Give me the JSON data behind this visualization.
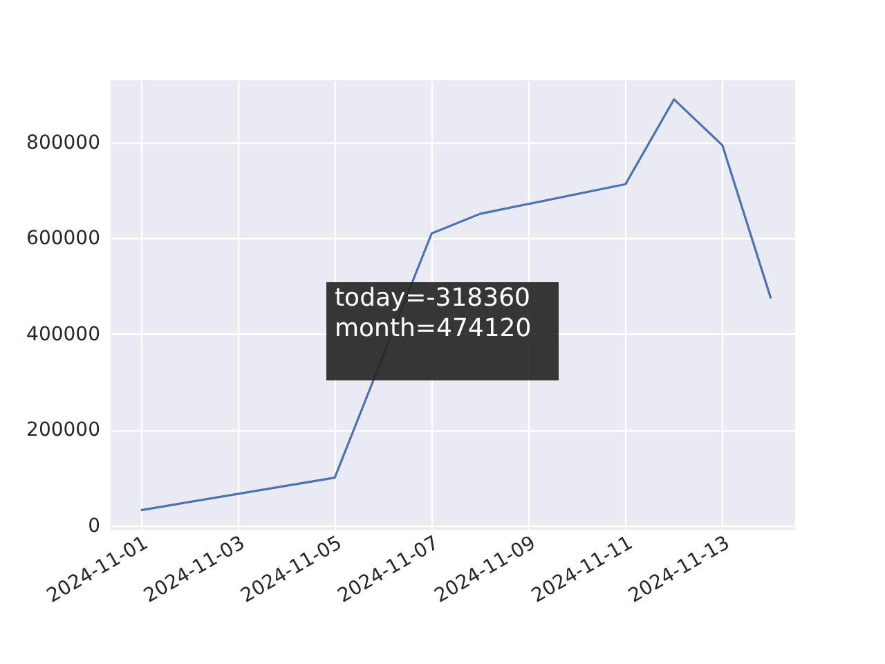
{
  "chart_data": {
    "type": "line",
    "x": [
      "2024-11-01",
      "2024-11-05",
      "2024-11-07",
      "2024-11-08",
      "2024-11-11",
      "2024-11-12",
      "2024-11-13",
      "2024-11-14"
    ],
    "series": [
      {
        "color": "#4c72b0",
        "values": [
          32000,
          100000,
          610000,
          651000,
          713000,
          890000,
          794000,
          474120
        ]
      }
    ],
    "xlim": [
      "2024-10-31T09:00",
      "2024-11-14T12:00"
    ],
    "xticks": [
      "2024-11-01",
      "2024-11-03",
      "2024-11-05",
      "2024-11-07",
      "2024-11-09",
      "2024-11-11",
      "2024-11-13"
    ],
    "ylim": [
      -9000,
      930000
    ],
    "yticks": [
      0,
      200000,
      400000,
      600000,
      800000
    ],
    "annotations": [
      "today=-318360\nmonth=474120"
    ],
    "grid": true,
    "marker": "none",
    "line_style": "solid"
  }
}
